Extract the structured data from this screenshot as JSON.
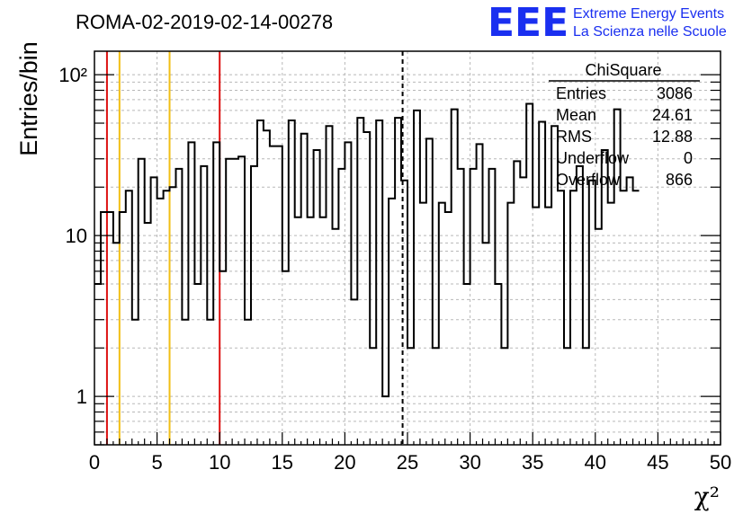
{
  "header": {
    "title": "ROMA-02-2019-02-14-00278",
    "logo_text": "EEE",
    "logo_line1": "Extreme Energy Events",
    "logo_line2": "La Scienza nelle Scuole"
  },
  "stats": {
    "name": "ChiSquare",
    "rows": [
      {
        "label": "Entries",
        "value": "3086"
      },
      {
        "label": "Mean",
        "value": "24.61"
      },
      {
        "label": "RMS",
        "value": "12.88"
      },
      {
        "label": "Underflow",
        "value": "0"
      },
      {
        "label": "Overflow",
        "value": "866"
      }
    ]
  },
  "colors": {
    "red": "#dd1111",
    "yellow": "#f2bf14",
    "logo": "#1a2ff0"
  },
  "chart_data": {
    "type": "histogram",
    "xlabel": "χ²",
    "ylabel": "Entries/bin",
    "xlim": [
      0,
      50
    ],
    "ylim": [
      0.5,
      140
    ],
    "log_y": true,
    "grid": true,
    "bin_width": 0.5,
    "x_ticks": [
      "0",
      "5",
      "10",
      "15",
      "20",
      "25",
      "30",
      "35",
      "40",
      "45",
      "50"
    ],
    "y_ticks": [
      {
        "value": 1,
        "label": "1"
      },
      {
        "value": 10,
        "label": "10"
      },
      {
        "value": 100,
        "label": "10²"
      }
    ],
    "values": [
      5,
      14,
      14,
      9,
      14,
      19,
      3,
      30,
      12,
      23,
      17,
      19,
      20,
      26,
      3,
      38,
      5,
      27,
      3,
      38,
      6,
      30,
      30,
      31,
      3,
      27,
      52,
      45,
      36,
      36,
      6,
      52,
      13,
      43,
      13,
      34,
      13,
      48,
      11,
      26,
      38,
      4,
      54,
      44,
      2,
      52,
      1,
      17,
      54,
      22,
      2,
      60,
      16,
      40,
      2,
      16,
      14,
      61,
      26,
      5,
      26,
      37,
      9,
      26,
      5,
      2,
      16,
      29,
      23,
      66,
      15,
      51,
      15,
      48,
      19,
      2,
      19,
      27,
      2,
      22,
      11,
      34,
      16,
      61,
      19,
      23,
      19
    ],
    "markers": [
      {
        "x": 1,
        "color": "red",
        "style": "solid"
      },
      {
        "x": 2,
        "color": "yellow",
        "style": "solid"
      },
      {
        "x": 6,
        "color": "yellow",
        "style": "solid"
      },
      {
        "x": 10,
        "color": "red",
        "style": "solid"
      },
      {
        "x": 24.61,
        "color": "black",
        "style": "dashed"
      }
    ]
  }
}
